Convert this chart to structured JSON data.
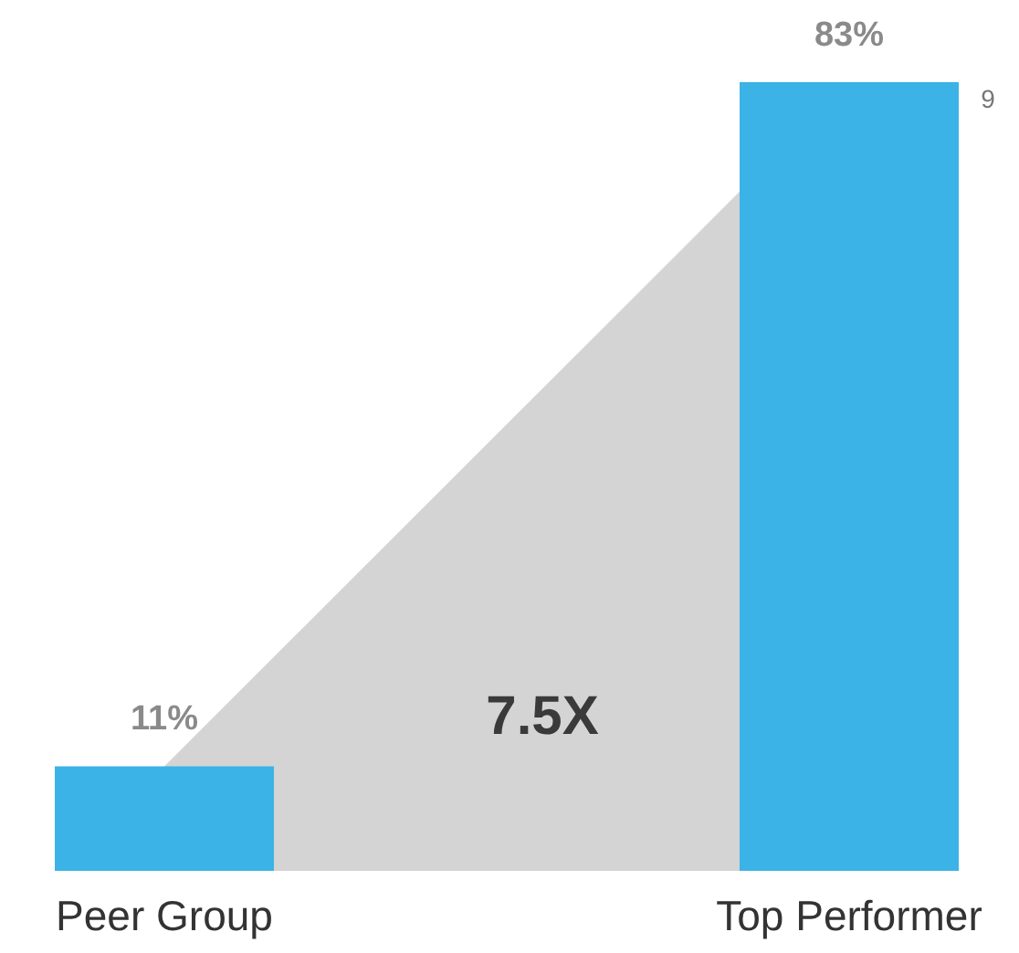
{
  "chart_data": {
    "type": "bar",
    "categories": [
      "Peer Group",
      "Top Performer"
    ],
    "series": [
      {
        "type": "area",
        "color": "#d4d4d4",
        "values": [
          11,
          83
        ]
      },
      {
        "color": "#3bb3e6",
        "values": [
          11,
          83
        ],
        "value_labels": [
          "11%",
          "83%"
        ]
      }
    ],
    "annotations": [
      "7.5X",
      "9"
    ]
  }
}
